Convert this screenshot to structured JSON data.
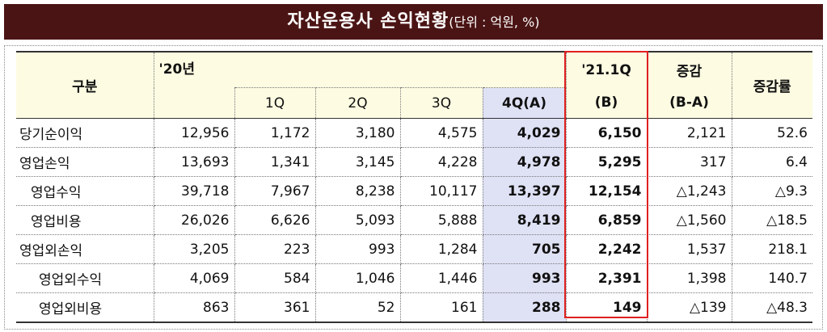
{
  "header": {
    "title": "자산운용사 손익현황",
    "unit": "(단위 : 억원, %)"
  },
  "table": {
    "columns": {
      "item": "구분",
      "year": "'20년",
      "quarters": [
        "1Q",
        "2Q",
        "3Q",
        "4Q(A)"
      ],
      "current": [
        "'21.1Q",
        "(B)"
      ],
      "change": [
        "증감",
        "(B-A)"
      ],
      "rate": "증감률"
    },
    "rows": [
      [
        "당기순이익",
        "12,956",
        "1,172",
        "3,180",
        "4,575",
        "4,029",
        "6,150",
        "2,121",
        "52.6"
      ],
      [
        "영업손익",
        "13,693",
        "1,341",
        "3,145",
        "4,228",
        "4,978",
        "5,295",
        "317",
        "6.4"
      ],
      [
        "영업수익",
        "39,718",
        "7,967",
        "8,238",
        "10,117",
        "13,397",
        "12,154",
        "△1,243",
        "△9.3"
      ],
      [
        "영업비용",
        "26,026",
        "6,626",
        "5,093",
        "5,888",
        "8,419",
        "6,859",
        "△1,560",
        "△18.5"
      ],
      [
        "영업외손익",
        "3,205",
        "223",
        "993",
        "1,284",
        "705",
        "2,242",
        "1,537",
        "218.1"
      ],
      [
        "영업외수익",
        "4,069",
        "584",
        "1,046",
        "1,446",
        "993",
        "2,391",
        "1,398",
        "140.7"
      ],
      [
        "영업외비용",
        "863",
        "361",
        "52",
        "161",
        "288",
        "149",
        "△139",
        "△48.3"
      ]
    ]
  }
}
